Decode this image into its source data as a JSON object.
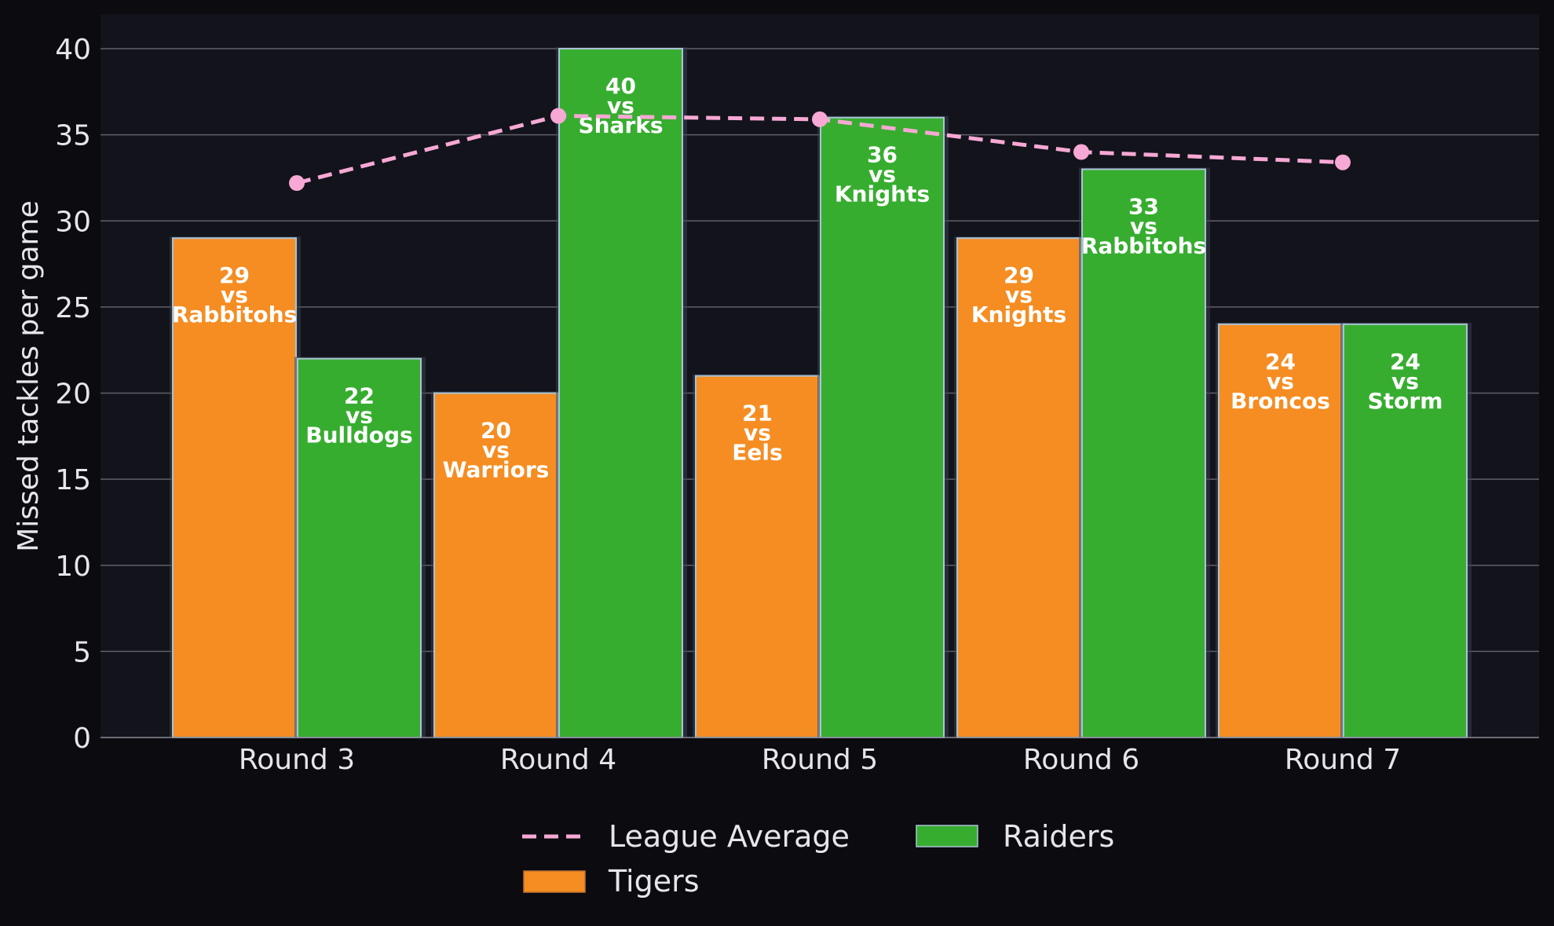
{
  "chart_data": {
    "type": "bar",
    "categories": [
      "Round 3",
      "Round 4",
      "Round 5",
      "Round 6",
      "Round 7"
    ],
    "ylabel": "Missed tackles per game",
    "ylim": [
      0,
      42
    ],
    "yticks": [
      0,
      5,
      10,
      15,
      20,
      25,
      30,
      35,
      40
    ],
    "grid": "horizontal",
    "legend_position": "bottom-center",
    "series": [
      {
        "name": "Tigers",
        "kind": "bar",
        "color": "#f58d22",
        "values": [
          29,
          20,
          21,
          29,
          24
        ],
        "opponents": [
          "Rabbitohs",
          "Warriors",
          "Eels",
          "Knights",
          "Broncos"
        ]
      },
      {
        "name": "Raiders",
        "kind": "bar",
        "color": "#37ad30",
        "values": [
          22,
          40,
          36,
          33,
          24
        ],
        "opponents": [
          "Bulldogs",
          "Sharks",
          "Knights",
          "Rabbitohs",
          "Storm"
        ]
      },
      {
        "name": "League Average",
        "kind": "line",
        "color": "#f7a8d4",
        "values": [
          32.2,
          36.1,
          35.9,
          34.0,
          33.4
        ]
      }
    ],
    "bar_label_connector": "vs",
    "colors": {
      "background": "#0b0b10",
      "plot_background": "#12131b",
      "grid": "#5f6068",
      "text": "#e6e6ea",
      "bar_edge": "#a9c4d6"
    }
  }
}
